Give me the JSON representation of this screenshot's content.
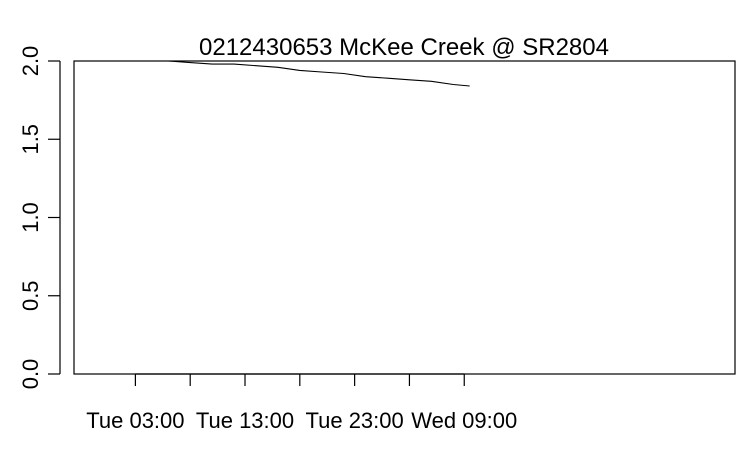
{
  "chart_data": {
    "type": "line",
    "title": "0212430653 McKee Creek @ SR2804",
    "xlabel": "",
    "ylabel": "",
    "x_unit": "hours since Tue 00:00",
    "xlim": [
      -2.6,
      57.7
    ],
    "ylim": [
      0.0,
      2.0
    ],
    "x_ticks": [
      {
        "value": 3,
        "label": "Tue 03:00"
      },
      {
        "value": 8,
        "label": ""
      },
      {
        "value": 13,
        "label": "Tue 13:00"
      },
      {
        "value": 18,
        "label": ""
      },
      {
        "value": 23,
        "label": "Tue 23:00"
      },
      {
        "value": 28,
        "label": ""
      },
      {
        "value": 33,
        "label": "Wed 09:00"
      }
    ],
    "y_ticks": [
      {
        "value": 0.0,
        "label": "0.0"
      },
      {
        "value": 0.5,
        "label": "0.5"
      },
      {
        "value": 1.0,
        "label": "1.0"
      },
      {
        "value": 1.5,
        "label": "1.5"
      },
      {
        "value": 2.0,
        "label": "2.0"
      }
    ],
    "grid": false,
    "series": [
      {
        "name": "",
        "color": "#000000",
        "x": [
          4.0,
          6.0,
          8.0,
          10.0,
          12.0,
          14.0,
          16.0,
          18.0,
          20.0,
          22.0,
          24.0,
          26.0,
          28.0,
          30.0,
          32.0,
          33.5
        ],
        "y": [
          2.0,
          2.0,
          1.99,
          1.98,
          1.98,
          1.97,
          1.96,
          1.94,
          1.93,
          1.92,
          1.9,
          1.89,
          1.88,
          1.87,
          1.85,
          1.84
        ]
      }
    ]
  }
}
